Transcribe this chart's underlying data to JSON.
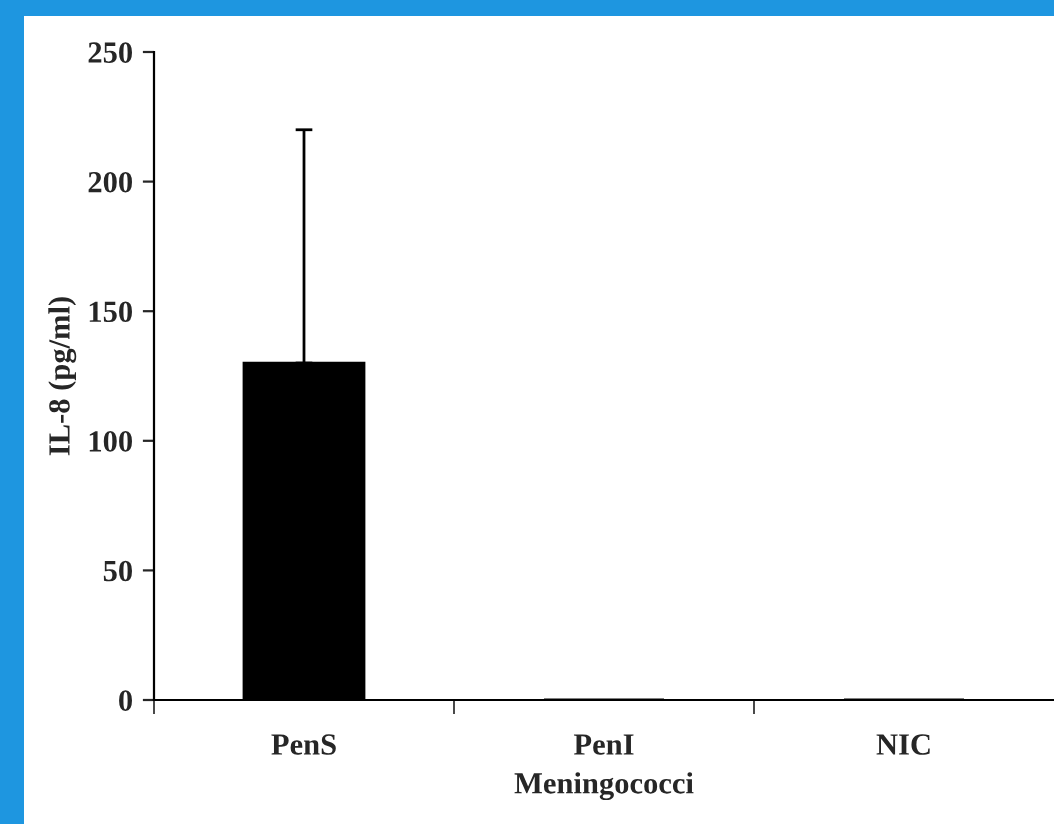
{
  "chart_data": {
    "type": "bar",
    "xlabel": "Meningococci",
    "ylabel": "IL-8 (pg/ml)",
    "categories": [
      "PenS",
      "PenI",
      "NIC"
    ],
    "values": [
      130,
      0,
      0
    ],
    "color": "#000000",
    "errors": [
      [
        130,
        220
      ],
      null,
      null
    ],
    "ylim": [
      0,
      250
    ],
    "yticks": [
      0,
      50,
      100,
      150,
      200,
      250
    ],
    "grid": false
  }
}
